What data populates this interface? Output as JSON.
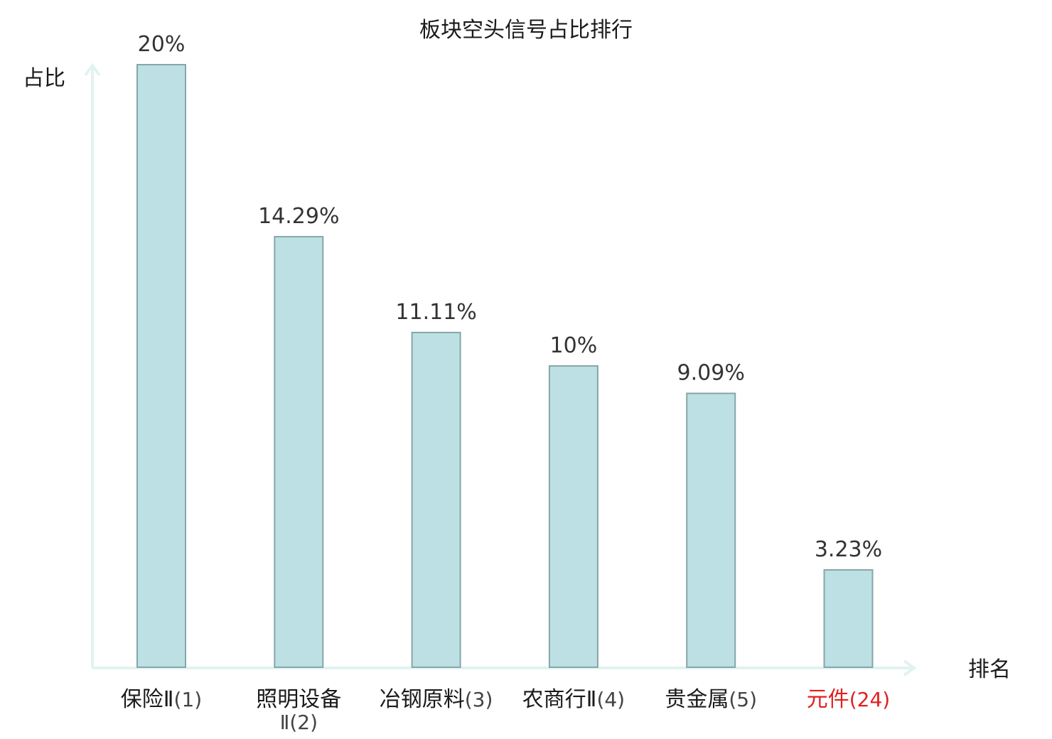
{
  "chart_data": {
    "type": "bar",
    "title": "板块空头信号占比排行",
    "xlabel": "排名",
    "ylabel": "占比",
    "ylim": [
      0,
      20
    ],
    "grid": false,
    "legend": "none",
    "categories": [
      {
        "name": "保险Ⅱ",
        "rank": "(1)",
        "highlight": false
      },
      {
        "name": "照明设备Ⅱ",
        "name_lines": [
          "照明设备",
          "Ⅱ"
        ],
        "rank": "(2)",
        "highlight": false
      },
      {
        "name": "冶钢原料",
        "rank": "(3)",
        "highlight": false
      },
      {
        "name": "农商行Ⅱ",
        "rank": "(4)",
        "highlight": false
      },
      {
        "name": "贵金属",
        "rank": "(5)",
        "highlight": false
      },
      {
        "name": "元件",
        "rank": "(24)",
        "highlight": true
      }
    ],
    "values": [
      20,
      14.29,
      11.11,
      10,
      9.09,
      3.23
    ],
    "value_labels": [
      "20%",
      "14.29%",
      "11.11%",
      "10%",
      "9.09%",
      "3.23%"
    ]
  },
  "colors": {
    "bar_fill": "#bce0e3",
    "bar_stroke": "#86a6a8",
    "axis": "#e1f3f0",
    "text": "#1a1a1a",
    "text_muted": "#444444",
    "highlight": "#e02020"
  }
}
